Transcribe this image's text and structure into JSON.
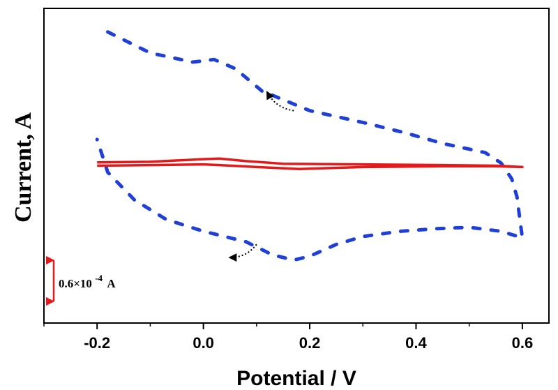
{
  "chart_data": {
    "type": "line",
    "title": "",
    "xlabel": "Potential / V",
    "ylabel": "Current, A",
    "xlim": [
      -0.3,
      0.65
    ],
    "ylim": [
      -1.2,
      1.2
    ],
    "xticks": [
      -0.2,
      0.0,
      0.2,
      0.4,
      0.6
    ],
    "xtick_labels": [
      "-0.2",
      "0.0",
      "0.2",
      "0.4",
      "0.6"
    ],
    "yticks_shown": false,
    "grid": false,
    "colors": {
      "dotted": "#1f3fd6",
      "solid": "#e31a1c",
      "arrow": "#000000",
      "scale": "#e31a1c"
    },
    "scale_bar": {
      "label_prefix": "0.6×10",
      "label_exp": "-4",
      "label_suffix": "A",
      "value": 0.6
    },
    "series": [
      {
        "name": "dotted-voltammogram",
        "style": "dotted",
        "color": "#1f3fd6",
        "points": [
          [
            -0.18,
            1.02
          ],
          [
            -0.1,
            0.86
          ],
          [
            -0.02,
            0.79
          ],
          [
            0.02,
            0.81
          ],
          [
            0.06,
            0.74
          ],
          [
            0.11,
            0.57
          ],
          [
            0.2,
            0.42
          ],
          [
            0.3,
            0.33
          ],
          [
            0.38,
            0.25
          ],
          [
            0.45,
            0.17
          ],
          [
            0.53,
            0.1
          ],
          [
            0.56,
            0.02
          ],
          [
            0.58,
            -0.1
          ],
          [
            0.59,
            -0.24
          ],
          [
            0.595,
            -0.4
          ],
          [
            0.6,
            -0.55
          ],
          [
            0.56,
            -0.5
          ],
          [
            0.5,
            -0.47
          ],
          [
            0.44,
            -0.48
          ],
          [
            0.37,
            -0.5
          ],
          [
            0.3,
            -0.54
          ],
          [
            0.25,
            -0.6
          ],
          [
            0.2,
            -0.69
          ],
          [
            0.17,
            -0.72
          ],
          [
            0.13,
            -0.68
          ],
          [
            0.08,
            -0.58
          ],
          [
            0.0,
            -0.5
          ],
          [
            -0.07,
            -0.41
          ],
          [
            -0.13,
            -0.26
          ],
          [
            -0.18,
            -0.05
          ],
          [
            -0.2,
            0.2
          ]
        ]
      },
      {
        "name": "solid-voltammogram",
        "style": "solid",
        "color": "#e31a1c",
        "points": [
          [
            -0.2,
            0.025
          ],
          [
            -0.1,
            0.03
          ],
          [
            0.0,
            0.05
          ],
          [
            0.03,
            0.055
          ],
          [
            0.08,
            0.035
          ],
          [
            0.15,
            0.015
          ],
          [
            0.3,
            0.01
          ],
          [
            0.45,
            0.005
          ],
          [
            0.55,
            0.0
          ],
          [
            0.6,
            -0.01
          ],
          [
            0.55,
            -0.005
          ],
          [
            0.45,
            -0.005
          ],
          [
            0.3,
            -0.01
          ],
          [
            0.18,
            -0.025
          ],
          [
            0.1,
            -0.01
          ],
          [
            0.03,
            0.005
          ],
          [
            0.0,
            0.01
          ],
          [
            -0.1,
            0.005
          ],
          [
            -0.2,
            0.0
          ]
        ]
      }
    ],
    "arrows": [
      {
        "name": "forward-arrow",
        "from": [
          0.1,
          -0.6
        ],
        "to": [
          0.05,
          -0.7
        ]
      },
      {
        "name": "reverse-arrow",
        "from": [
          0.17,
          0.42
        ],
        "to": [
          0.12,
          0.56
        ]
      }
    ]
  }
}
